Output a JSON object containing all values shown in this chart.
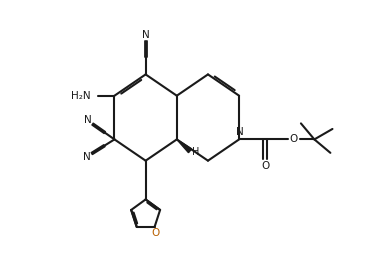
{
  "bg_color": "#ffffff",
  "line_color": "#1a1a1a",
  "lw": 1.5,
  "text_color": "#1a1a1a",
  "orange_color": "#b86000",
  "figsize": [
    3.65,
    2.75
  ],
  "dpi": 100,
  "xlim": [
    0,
    9.5
  ],
  "ylim": [
    0,
    7.2
  ]
}
